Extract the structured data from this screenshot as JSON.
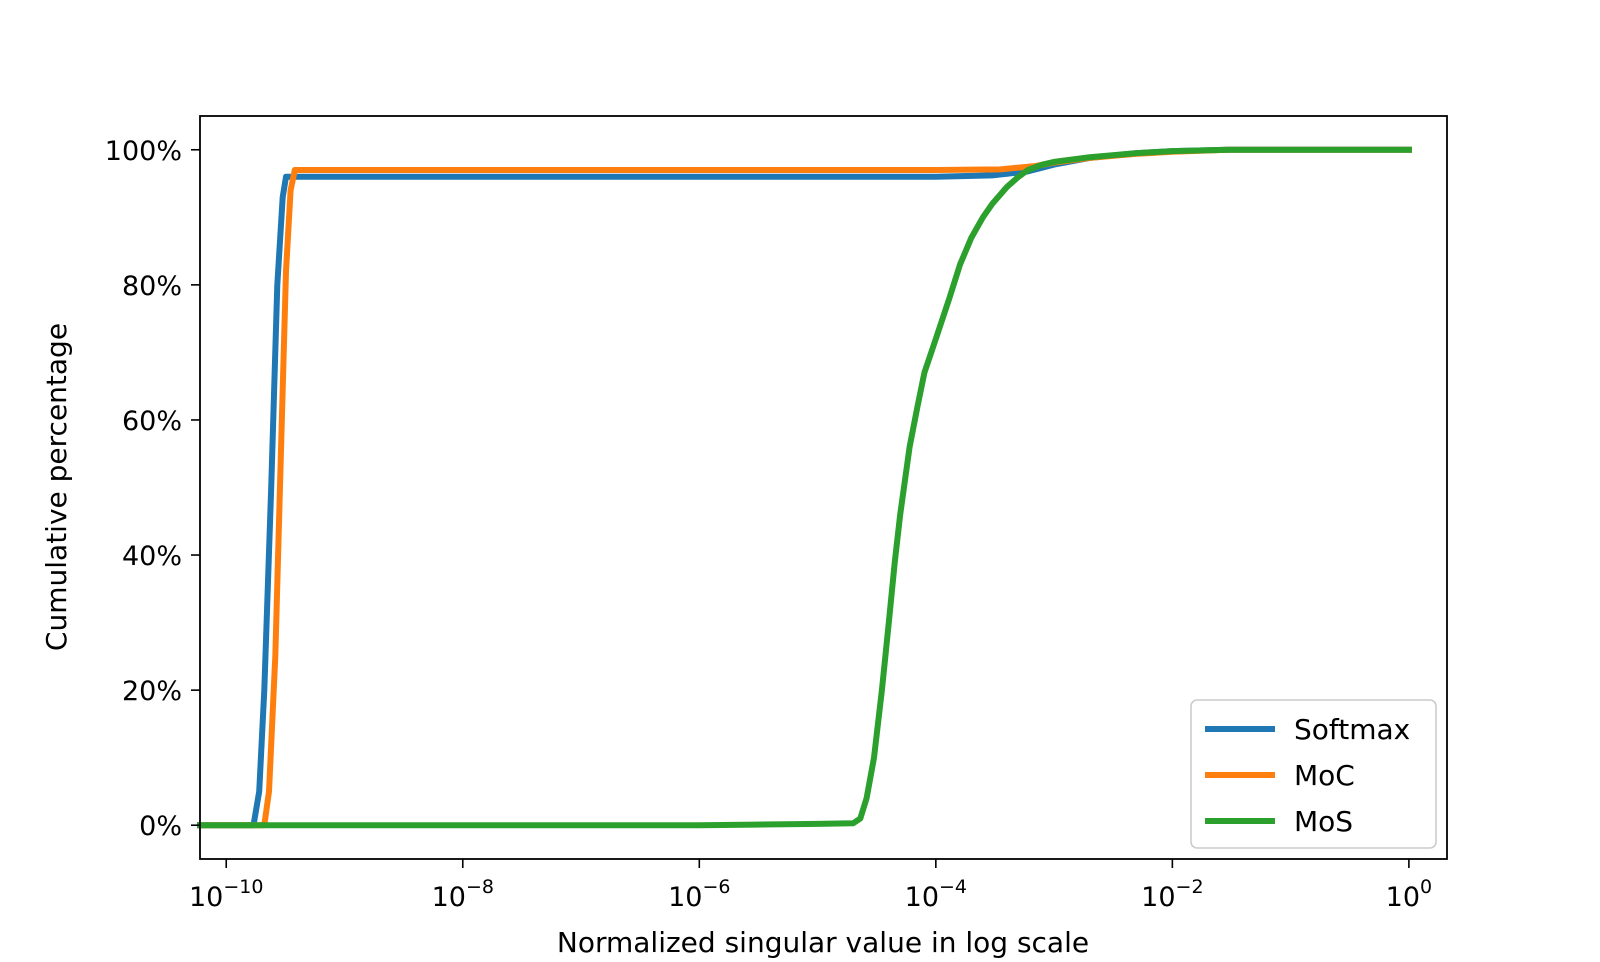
{
  "chart_data": {
    "type": "line",
    "title": "",
    "xlabel": "Normalized singular value in log scale",
    "ylabel": "Cumulative percentage",
    "x_scale": "log",
    "xlim": [
      6e-11,
      2.1
    ],
    "ylim": [
      -5,
      105
    ],
    "x_ticks": [
      {
        "value": 1e-10,
        "base": "10",
        "exp": "−10"
      },
      {
        "value": 1e-08,
        "base": "10",
        "exp": "−8"
      },
      {
        "value": 1e-06,
        "base": "10",
        "exp": "−6"
      },
      {
        "value": 0.0001,
        "base": "10",
        "exp": "−4"
      },
      {
        "value": 0.01,
        "base": "10",
        "exp": "−2"
      },
      {
        "value": 1,
        "base": "10",
        "exp": "0"
      }
    ],
    "y_ticks": [
      {
        "value": 0,
        "label": "0%"
      },
      {
        "value": 20,
        "label": "20%"
      },
      {
        "value": 40,
        "label": "40%"
      },
      {
        "value": 60,
        "label": "60%"
      },
      {
        "value": 80,
        "label": "80%"
      },
      {
        "value": 100,
        "label": "100%"
      }
    ],
    "grid": false,
    "legend_position": "bottom-right",
    "series": [
      {
        "name": "Softmax",
        "color": "#1f77b4",
        "points": [
          [
            6e-11,
            0
          ],
          [
            1.7e-10,
            0
          ],
          [
            1.9e-10,
            5
          ],
          [
            2.1e-10,
            20
          ],
          [
            2.4e-10,
            50
          ],
          [
            2.7e-10,
            80
          ],
          [
            3e-10,
            93
          ],
          [
            3.2e-10,
            96
          ],
          [
            1e-08,
            96
          ],
          [
            1e-06,
            96
          ],
          [
            0.0001,
            96
          ],
          [
            0.0003,
            96.2
          ],
          [
            0.0006,
            96.8
          ],
          [
            0.001,
            97.8
          ],
          [
            0.002,
            98.8
          ],
          [
            0.005,
            99.5
          ],
          [
            0.01,
            99.8
          ],
          [
            0.03,
            100
          ],
          [
            1,
            100
          ]
        ]
      },
      {
        "name": "MoC",
        "color": "#ff7f0e",
        "points": [
          [
            6e-11,
            0
          ],
          [
            2.1e-10,
            0
          ],
          [
            2.3e-10,
            5
          ],
          [
            2.6e-10,
            25
          ],
          [
            2.9e-10,
            55
          ],
          [
            3.2e-10,
            82
          ],
          [
            3.5e-10,
            94
          ],
          [
            3.8e-10,
            97
          ],
          [
            1e-08,
            97
          ],
          [
            1e-06,
            97
          ],
          [
            0.0001,
            97
          ],
          [
            0.00035,
            97.1
          ],
          [
            0.0007,
            97.6
          ],
          [
            0.001,
            98.1
          ],
          [
            0.002,
            98.8
          ],
          [
            0.005,
            99.4
          ],
          [
            0.01,
            99.7
          ],
          [
            0.03,
            100
          ],
          [
            1,
            100
          ]
        ]
      },
      {
        "name": "MoS",
        "color": "#2ca02c",
        "points": [
          [
            6e-11,
            0
          ],
          [
            1e-08,
            0
          ],
          [
            1e-06,
            0
          ],
          [
            3e-06,
            0.1
          ],
          [
            1e-05,
            0.2
          ],
          [
            2e-05,
            0.3
          ],
          [
            2.3e-05,
            1
          ],
          [
            2.6e-05,
            4
          ],
          [
            3e-05,
            10
          ],
          [
            3.5e-05,
            20
          ],
          [
            4e-05,
            30
          ],
          [
            4.5e-05,
            39
          ],
          [
            5e-05,
            46
          ],
          [
            6e-05,
            56
          ],
          [
            7e-05,
            62
          ],
          [
            8e-05,
            67
          ],
          [
            0.0001,
            72
          ],
          [
            0.00013,
            78
          ],
          [
            0.00016,
            83
          ],
          [
            0.0002,
            87
          ],
          [
            0.00025,
            90
          ],
          [
            0.0003,
            92
          ],
          [
            0.0004,
            94.5
          ],
          [
            0.0005,
            96
          ],
          [
            0.0006,
            97
          ],
          [
            0.0008,
            97.8
          ],
          [
            0.001,
            98.2
          ],
          [
            0.002,
            98.9
          ],
          [
            0.005,
            99.5
          ],
          [
            0.01,
            99.8
          ],
          [
            0.03,
            100
          ],
          [
            1,
            100
          ]
        ]
      }
    ]
  }
}
